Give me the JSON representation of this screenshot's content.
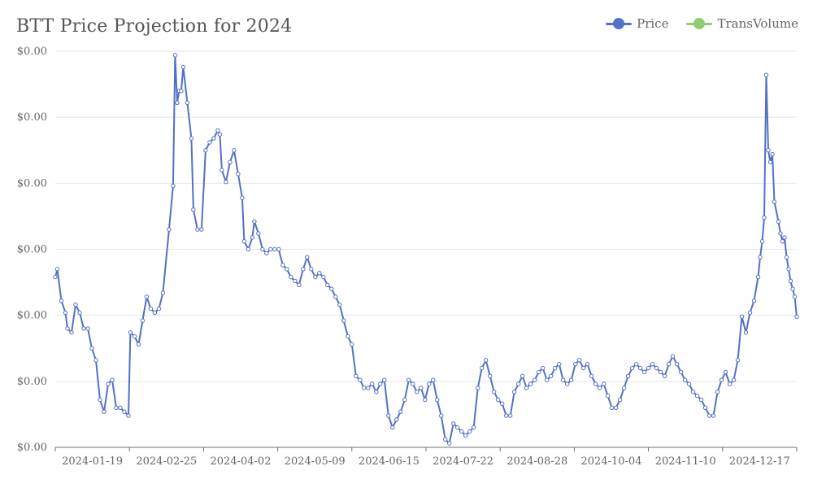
{
  "chart_data": {
    "type": "line",
    "title": "BTT Price Projection for 2024",
    "xlabel": "",
    "ylabel": "",
    "grid": true,
    "legend_position": "top-right",
    "y_tick_labels": [
      "$0.00",
      "$0.00",
      "$0.00",
      "$0.00",
      "$0.00",
      "$0.00",
      "$0.00"
    ],
    "x_tick_labels": [
      "2024-01-19",
      "2024-02-25",
      "2024-04-02",
      "2024-05-09",
      "2024-06-15",
      "2024-07-22",
      "2024-08-28",
      "2024-10-04",
      "2024-11-10",
      "2024-12-17"
    ],
    "ylim": [
      0,
      1
    ],
    "x_range_days": [
      0,
      365
    ],
    "series": [
      {
        "name": "Price",
        "color": "#5470c6",
        "anchors": [
          [
            0,
            0.43
          ],
          [
            1,
            0.45
          ],
          [
            3,
            0.37
          ],
          [
            5,
            0.34
          ],
          [
            6,
            0.3
          ],
          [
            8,
            0.29
          ],
          [
            10,
            0.36
          ],
          [
            12,
            0.34
          ],
          [
            14,
            0.3
          ],
          [
            16,
            0.3
          ],
          [
            18,
            0.25
          ],
          [
            20,
            0.22
          ],
          [
            22,
            0.12
          ],
          [
            24,
            0.09
          ],
          [
            26,
            0.16
          ],
          [
            28,
            0.17
          ],
          [
            30,
            0.1
          ],
          [
            32,
            0.1
          ],
          [
            34,
            0.09
          ],
          [
            36,
            0.08
          ],
          [
            37,
            0.29
          ],
          [
            39,
            0.28
          ],
          [
            41,
            0.26
          ],
          [
            43,
            0.32
          ],
          [
            45,
            0.38
          ],
          [
            47,
            0.35
          ],
          [
            49,
            0.34
          ],
          [
            51,
            0.35
          ],
          [
            53,
            0.39
          ],
          [
            56,
            0.55
          ],
          [
            58,
            0.66
          ],
          [
            59,
            0.99
          ],
          [
            60,
            0.87
          ],
          [
            61,
            0.9
          ],
          [
            62,
            0.9
          ],
          [
            63,
            0.96
          ],
          [
            65,
            0.87
          ],
          [
            67,
            0.78
          ],
          [
            68,
            0.6
          ],
          [
            70,
            0.55
          ],
          [
            72,
            0.55
          ],
          [
            74,
            0.75
          ],
          [
            76,
            0.77
          ],
          [
            78,
            0.78
          ],
          [
            80,
            0.8
          ],
          [
            81,
            0.79
          ],
          [
            82,
            0.7
          ],
          [
            84,
            0.67
          ],
          [
            86,
            0.72
          ],
          [
            88,
            0.75
          ],
          [
            90,
            0.69
          ],
          [
            92,
            0.63
          ],
          [
            93,
            0.52
          ],
          [
            95,
            0.5
          ],
          [
            97,
            0.53
          ],
          [
            98,
            0.57
          ],
          [
            100,
            0.54
          ],
          [
            102,
            0.5
          ],
          [
            104,
            0.49
          ],
          [
            106,
            0.5
          ],
          [
            108,
            0.5
          ],
          [
            110,
            0.5
          ],
          [
            112,
            0.46
          ],
          [
            114,
            0.45
          ],
          [
            116,
            0.43
          ],
          [
            118,
            0.42
          ],
          [
            120,
            0.41
          ],
          [
            122,
            0.45
          ],
          [
            124,
            0.48
          ],
          [
            126,
            0.45
          ],
          [
            128,
            0.43
          ],
          [
            130,
            0.44
          ],
          [
            132,
            0.43
          ],
          [
            134,
            0.41
          ],
          [
            136,
            0.4
          ],
          [
            138,
            0.38
          ],
          [
            140,
            0.36
          ],
          [
            142,
            0.32
          ],
          [
            144,
            0.28
          ],
          [
            146,
            0.26
          ],
          [
            148,
            0.18
          ],
          [
            150,
            0.17
          ],
          [
            152,
            0.15
          ],
          [
            154,
            0.15
          ],
          [
            156,
            0.16
          ],
          [
            158,
            0.14
          ],
          [
            160,
            0.16
          ],
          [
            162,
            0.17
          ],
          [
            164,
            0.08
          ],
          [
            166,
            0.05
          ],
          [
            168,
            0.07
          ],
          [
            170,
            0.09
          ],
          [
            172,
            0.12
          ],
          [
            174,
            0.17
          ],
          [
            176,
            0.16
          ],
          [
            178,
            0.14
          ],
          [
            180,
            0.15
          ],
          [
            182,
            0.12
          ],
          [
            184,
            0.16
          ],
          [
            186,
            0.17
          ],
          [
            188,
            0.12
          ],
          [
            190,
            0.08
          ],
          [
            192,
            0.02
          ],
          [
            194,
            0.01
          ],
          [
            196,
            0.06
          ],
          [
            198,
            0.05
          ],
          [
            200,
            0.04
          ],
          [
            202,
            0.03
          ],
          [
            204,
            0.04
          ],
          [
            206,
            0.05
          ],
          [
            208,
            0.15
          ],
          [
            210,
            0.2
          ],
          [
            212,
            0.22
          ],
          [
            214,
            0.18
          ],
          [
            216,
            0.14
          ],
          [
            218,
            0.12
          ],
          [
            220,
            0.11
          ],
          [
            222,
            0.08
          ],
          [
            224,
            0.08
          ],
          [
            226,
            0.14
          ],
          [
            228,
            0.16
          ],
          [
            230,
            0.18
          ],
          [
            232,
            0.15
          ],
          [
            234,
            0.16
          ],
          [
            236,
            0.17
          ],
          [
            238,
            0.19
          ],
          [
            240,
            0.2
          ],
          [
            242,
            0.17
          ],
          [
            244,
            0.18
          ],
          [
            246,
            0.2
          ],
          [
            248,
            0.21
          ],
          [
            250,
            0.17
          ],
          [
            252,
            0.16
          ],
          [
            254,
            0.17
          ],
          [
            256,
            0.21
          ],
          [
            258,
            0.22
          ],
          [
            260,
            0.2
          ],
          [
            262,
            0.21
          ],
          [
            264,
            0.18
          ],
          [
            266,
            0.16
          ],
          [
            268,
            0.15
          ],
          [
            270,
            0.16
          ],
          [
            272,
            0.13
          ],
          [
            274,
            0.1
          ],
          [
            276,
            0.1
          ],
          [
            278,
            0.12
          ],
          [
            280,
            0.15
          ],
          [
            282,
            0.18
          ],
          [
            284,
            0.2
          ],
          [
            286,
            0.21
          ],
          [
            288,
            0.2
          ],
          [
            290,
            0.19
          ],
          [
            292,
            0.2
          ],
          [
            294,
            0.21
          ],
          [
            296,
            0.2
          ],
          [
            298,
            0.19
          ],
          [
            300,
            0.18
          ],
          [
            302,
            0.21
          ],
          [
            304,
            0.23
          ],
          [
            306,
            0.21
          ],
          [
            308,
            0.19
          ],
          [
            310,
            0.17
          ],
          [
            312,
            0.16
          ],
          [
            314,
            0.14
          ],
          [
            316,
            0.13
          ],
          [
            318,
            0.12
          ],
          [
            320,
            0.1
          ],
          [
            322,
            0.08
          ],
          [
            324,
            0.08
          ],
          [
            326,
            0.14
          ],
          [
            328,
            0.17
          ],
          [
            330,
            0.19
          ],
          [
            332,
            0.16
          ],
          [
            334,
            0.17
          ],
          [
            336,
            0.22
          ],
          [
            338,
            0.33
          ],
          [
            340,
            0.29
          ],
          [
            342,
            0.34
          ],
          [
            344,
            0.37
          ],
          [
            346,
            0.43
          ],
          [
            347,
            0.48
          ],
          [
            348,
            0.52
          ],
          [
            349,
            0.58
          ],
          [
            350,
            0.94
          ],
          [
            351,
            0.75
          ],
          [
            352,
            0.72
          ],
          [
            353,
            0.74
          ],
          [
            354,
            0.62
          ],
          [
            356,
            0.57
          ],
          [
            357,
            0.54
          ],
          [
            358,
            0.52
          ],
          [
            359,
            0.53
          ],
          [
            360,
            0.48
          ],
          [
            361,
            0.45
          ],
          [
            362,
            0.42
          ],
          [
            363,
            0.4
          ],
          [
            364,
            0.38
          ],
          [
            365,
            0.33
          ]
        ]
      },
      {
        "name": "TransVolume",
        "color": "#91cc75",
        "anchors": []
      }
    ]
  }
}
